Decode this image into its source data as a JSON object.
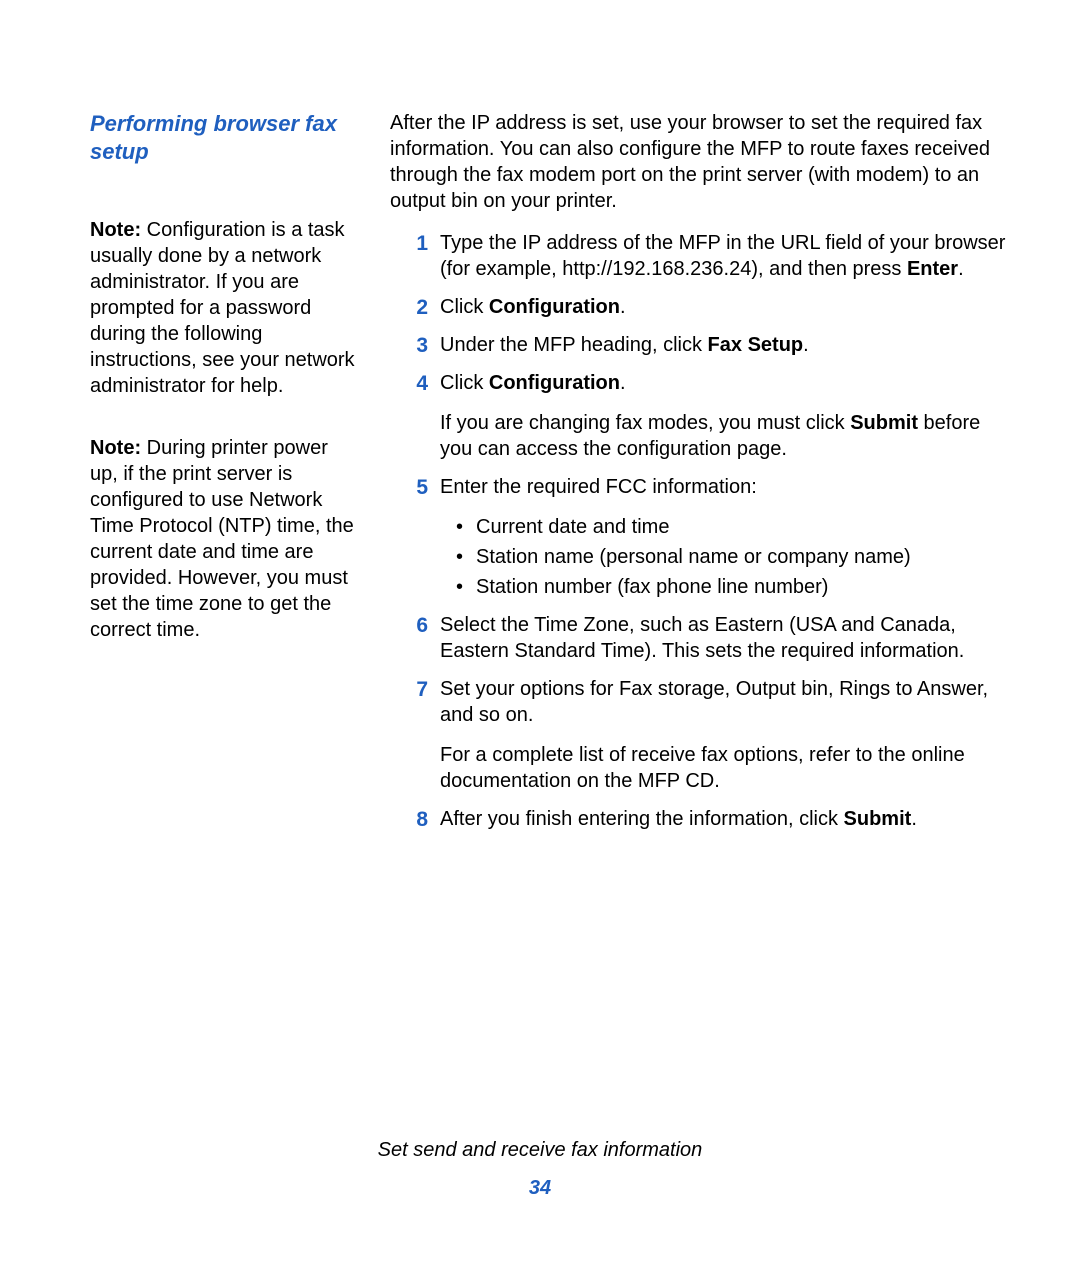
{
  "heading": "Performing browser fax setup",
  "notes": [
    {
      "label": "Note:",
      "text": " Configuration is a task usually done by a network administrator. If you are prompted for a password during the following instructions, see your network administrator for help."
    },
    {
      "label": "Note:",
      "text": " During printer power up, if the print server is configured to use Network Time Protocol (NTP) time, the current date and time are provided. However, you must set the time zone to get the correct time."
    }
  ],
  "intro": "After the IP address is set, use your browser to set the required fax information. You can also configure the MFP to route faxes received through the fax modem port on the print server (with modem) to an output bin on your printer.",
  "steps": [
    {
      "parts": [
        {
          "t": "Type the IP address of the MFP in the URL field of your browser (for example, http://192.168.236.24), and then press "
        },
        {
          "t": "Enter",
          "b": true
        },
        {
          "t": "."
        }
      ]
    },
    {
      "parts": [
        {
          "t": "Click "
        },
        {
          "t": "Configuration",
          "b": true
        },
        {
          "t": "."
        }
      ]
    },
    {
      "parts": [
        {
          "t": "Under the MFP heading, click "
        },
        {
          "t": "Fax Setup",
          "b": true
        },
        {
          "t": "."
        }
      ]
    },
    {
      "parts": [
        {
          "t": "Click "
        },
        {
          "t": "Configuration",
          "b": true
        },
        {
          "t": "."
        }
      ],
      "subparts": [
        {
          "t": "If you are changing fax modes, you must click "
        },
        {
          "t": "Submit",
          "b": true
        },
        {
          "t": " before you can access the configuration page."
        }
      ]
    },
    {
      "parts": [
        {
          "t": "Enter the required FCC information:"
        }
      ],
      "bullets": [
        "Current date and time",
        "Station name (personal name or company name)",
        "Station number (fax phone line number)"
      ]
    },
    {
      "parts": [
        {
          "t": "Select the Time Zone, such as Eastern (USA and Canada, Eastern Standard Time). This sets the required information."
        }
      ]
    },
    {
      "parts": [
        {
          "t": "Set your options for Fax storage, Output bin, Rings to Answer, and so on."
        }
      ],
      "subparts": [
        {
          "t": "For a complete list of receive fax options, refer to the online documentation on the MFP CD."
        }
      ]
    },
    {
      "parts": [
        {
          "t": "After you finish entering the information, click "
        },
        {
          "t": "Submit",
          "b": true
        },
        {
          "t": "."
        }
      ]
    }
  ],
  "footer": "Set send and receive fax information",
  "page_number": "34",
  "colors": {
    "accent": "#1f5fbf",
    "text": "#000000",
    "background": "#ffffff"
  }
}
